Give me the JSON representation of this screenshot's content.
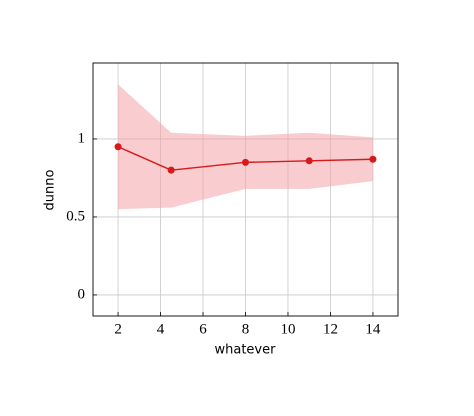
{
  "chart_data": {
    "type": "line",
    "xlabel": "whatever",
    "ylabel": "dunno",
    "x": [
      2,
      4.5,
      8,
      11,
      14
    ],
    "series": [
      {
        "color": "#d7191c",
        "values": [
          0.95,
          0.8,
          0.85,
          0.86,
          0.87
        ],
        "band": {
          "color": "#f4a3a8",
          "lower": [
            0.55,
            0.56,
            0.68,
            0.68,
            0.73
          ],
          "upper": [
            1.35,
            1.04,
            1.02,
            1.04,
            1.01
          ]
        }
      }
    ],
    "xlim": [
      0.82,
      15.18
    ],
    "ylim": [
      -0.135,
      1.487
    ],
    "xticks": [
      2,
      4,
      6,
      8,
      10,
      12,
      14
    ],
    "yticks": [
      0,
      0.5,
      1
    ],
    "grid": true
  }
}
